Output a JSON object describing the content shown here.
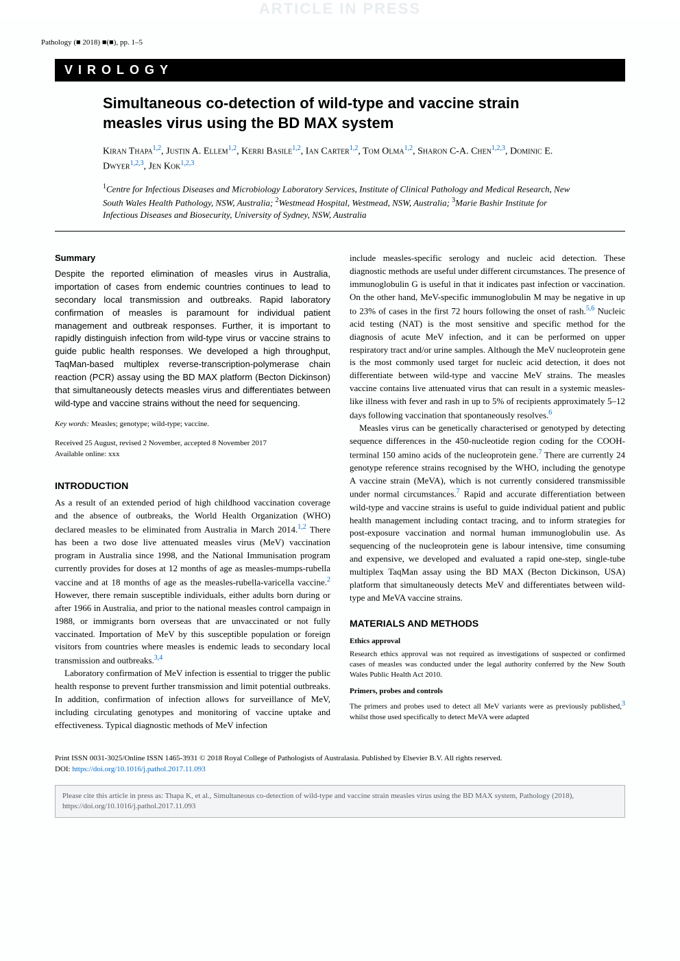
{
  "banner": {
    "aip": "ARTICLE IN PRESS"
  },
  "journal_ref": "Pathology (■ 2018) ■(■), pp. 1–5",
  "section_tag": "VIROLOGY",
  "title": "Simultaneous co-detection of wild-type and vaccine strain measles virus using the BD MAX system",
  "authors_html": "Kiran Thapa|1,2|, Justin A. Ellem|1,2|, Kerri Basile|1,2|, Ian Carter|1,2|, Tom Olma|1,2|, Sharon C-A. Chen|1,2,3|, Dominic E. Dwyer|1,2,3|, Jen Kok|1,2,3|",
  "affiliations": "¹Centre for Infectious Diseases and Microbiology Laboratory Services, Institute of Clinical Pathology and Medical Research, New South Wales Health Pathology, NSW, Australia; ²Westmead Hospital, Westmead, NSW, Australia; ³Marie Bashir Institute for Infectious Diseases and Biosecurity, University of Sydney, NSW, Australia",
  "summary": {
    "heading": "Summary",
    "body": "Despite the reported elimination of measles virus in Australia, importation of cases from endemic countries continues to lead to secondary local transmission and outbreaks. Rapid laboratory confirmation of measles is paramount for individual patient management and outbreak responses. Further, it is important to rapidly distinguish infection from wild-type virus or vaccine strains to guide public health responses. We developed a high throughput, TaqMan-based multiplex reverse-transcription-polymerase chain reaction (PCR) assay using the BD MAX platform (Becton Dickinson) that simultaneously detects measles virus and differentiates between wild-type and vaccine strains without the need for sequencing."
  },
  "keywords": {
    "label": "Key words:",
    "text": " Measles; genotype; wild-type; vaccine."
  },
  "dates": {
    "received": "Received 25 August, revised 2 November, accepted 8 November 2017",
    "online": "Available online: xxx"
  },
  "intro": {
    "heading": "INTRODUCTION",
    "p1": "As a result of an extended period of high childhood vaccination coverage and the absence of outbreaks, the World Health Organization (WHO) declared measles to be eliminated from Australia in March 2014.",
    "p1_ref": "1,2",
    "p1b": " There has been a two dose live attenuated measles virus (MeV) vaccination program in Australia since 1998, and the National Immunisation program currently provides for doses at 12 months of age as measles-mumps-rubella vaccine and at 18 months of age as the measles-rubella-varicella vaccine.",
    "p1b_ref": "2",
    "p1c": " However, there remain susceptible individuals, either adults born during or after 1966 in Australia, and prior to the national measles control campaign in 1988, or immigrants born overseas that are unvaccinated or not fully vaccinated. Importation of MeV by this susceptible population or foreign visitors from countries where measles is endemic leads to secondary local transmission and outbreaks.",
    "p1c_ref": "3,4",
    "p2": "Laboratory confirmation of MeV infection is essential to trigger the public health response to prevent further transmission and limit potential outbreaks. In addition, confirmation of infection allows for surveillance of MeV, including circulating genotypes and monitoring of vaccine uptake and effectiveness. Typical diagnostic methods of MeV infection"
  },
  "col2": {
    "p1": "include measles-specific serology and nucleic acid detection. These diagnostic methods are useful under different circumstances. The presence of immunoglobulin G is useful in that it indicates past infection or vaccination. On the other hand, MeV-specific immunoglobulin M may be negative in up to 23% of cases in the first 72 hours following the onset of rash.",
    "p1_ref": "5,6",
    "p1b": " Nucleic acid testing (NAT) is the most sensitive and specific method for the diagnosis of acute MeV infection, and it can be performed on upper respiratory tract and/or urine samples. Although the MeV nucleoprotein gene is the most commonly used target for nucleic acid detection, it does not differentiate between wild-type and vaccine MeV strains. The measles vaccine contains live attenuated virus that can result in a systemic measles-like illness with fever and rash in up to 5% of recipients approximately 5–12 days following vaccination that spontaneously resolves.",
    "p1b_ref": "6",
    "p2": "Measles virus can be genetically characterised or genotyped by detecting sequence differences in the 450-nucleotide region coding for the COOH-terminal 150 amino acids of the nucleoprotein gene.",
    "p2_ref": "7",
    "p2b": " There are currently 24 genotype reference strains recognised by the WHO, including the genotype A vaccine strain (MeVA), which is not currently considered transmissible under normal circumstances.",
    "p2b_ref": "7",
    "p2c": " Rapid and accurate differentiation between wild-type and vaccine strains is useful to guide individual patient and public health management including contact tracing, and to inform strategies for post-exposure vaccination and normal human immunoglobulin use. As sequencing of the nucleoprotein gene is labour intensive, time consuming and expensive, we developed and evaluated a rapid one-step, single-tube multiplex TaqMan assay using the BD MAX (Becton Dickinson, USA) platform that simultaneously detects MeV and differentiates between wild-type and MeVA vaccine strains."
  },
  "methods": {
    "heading": "MATERIALS AND METHODS",
    "h2a": "Ethics approval",
    "p_a": "Research ethics approval was not required as investigations of suspected or confirmed cases of measles was conducted under the legal authority conferred by the New South Wales Public Health Act 2010.",
    "h2b": "Primers, probes and controls",
    "p_b": "The primers and probes used to detect all MeV variants were as previously published,",
    "p_b_ref": "3",
    "p_b2": " whilst those used specifically to detect MeVA were adapted"
  },
  "footer": {
    "issn": "Print ISSN 0031-3025/Online ISSN 1465-3931 © 2018 Royal College of Pathologists of Australasia. Published by Elsevier B.V. All rights reserved.",
    "doi_label": "DOI: ",
    "doi": "https://doi.org/10.1016/j.pathol.2017.11.093"
  },
  "cite_box": "Please cite this article in press as: Thapa K, et al., Simultaneous co-detection of wild-type and vaccine strain measles virus using the BD MAX system, Pathology (2018), https://doi.org/10.1016/j.pathol.2017.11.093",
  "colors": {
    "top_bar": "#b8babd",
    "aip_text": "#e8edf0",
    "link": "#0068c9",
    "cite_bg": "#f3f4f6",
    "cite_border": "#b0b3b7"
  }
}
